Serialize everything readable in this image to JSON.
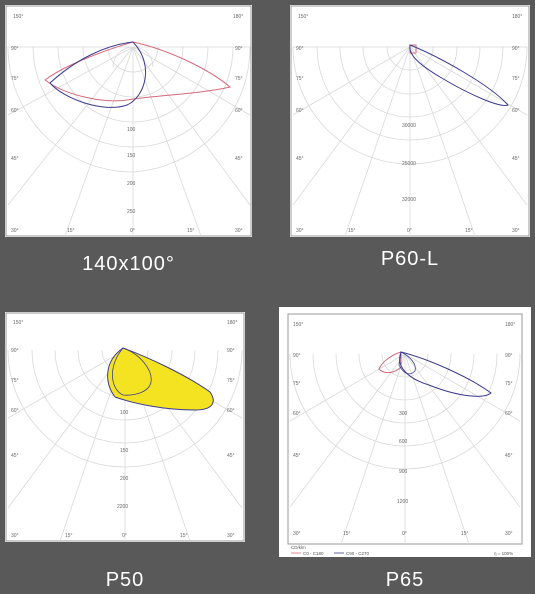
{
  "captions": {
    "top_left": "140x100°",
    "top_right": "P60-L",
    "bottom_left": "P50",
    "bottom_right": "P65"
  },
  "colors": {
    "background": "#595959",
    "curve_c0": "#3b3b8f",
    "curve_c90": "#d46a7a",
    "fill_p50": "#f4e320"
  },
  "p65_legend": {
    "unit": "CD/klm",
    "c0_label": "C0 - C180",
    "c90_label": "C90 - C270",
    "ratio": "η = 100%"
  }
}
